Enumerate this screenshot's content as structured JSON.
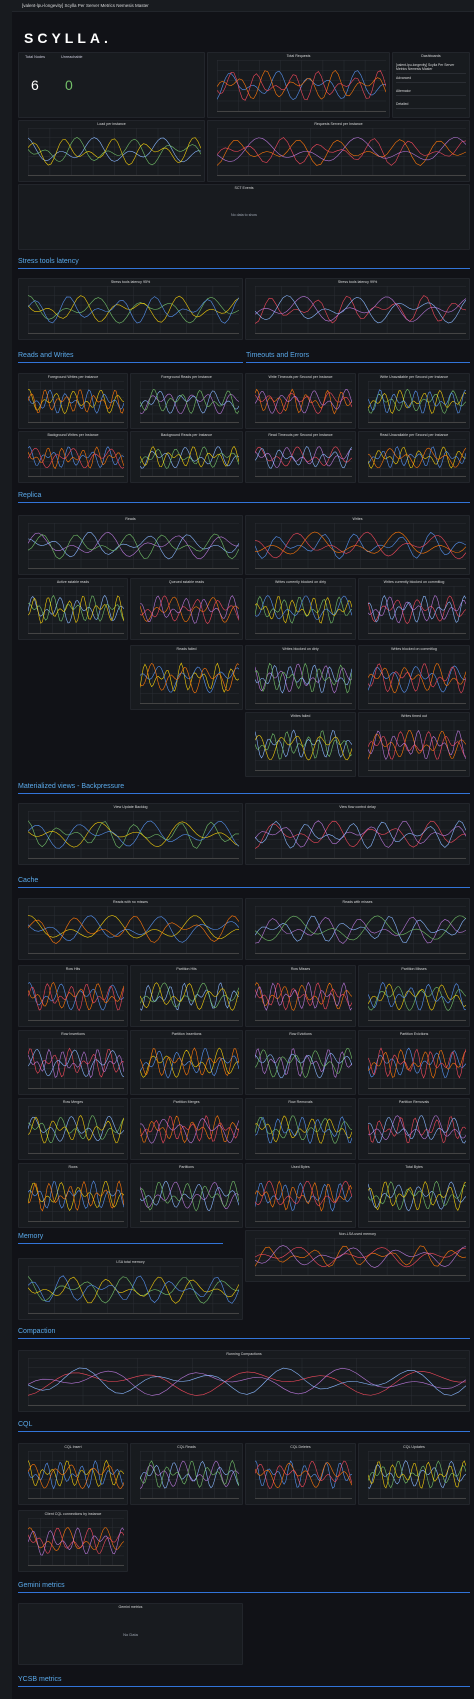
{
  "header": {
    "title": "[valent-lpu-longevity] Scylla Per Server Metrics Nemesis Master"
  },
  "logo": "SCYLLA.",
  "stats": {
    "total_nodes_label": "Total Nodes",
    "total_nodes": 6,
    "unreachable_label": "Unreachable",
    "unreachable": 0
  },
  "dashboards": {
    "title": "Dashboards",
    "items": [
      "[valent-lpu-longevity] Scylla Per Server Metrics Nemesis Master",
      "Advanced",
      "Alternator",
      "Detailed"
    ]
  },
  "top_panels": [
    "Total Requests",
    "Load per instance",
    "Requests Served per Instance",
    "SCT Events"
  ],
  "sct_no_data": "No data to show",
  "sections": [
    {
      "title": "Stress tools latency",
      "panels": [
        "Stress tools latency 95%",
        "Stress tools latency 99%"
      ]
    },
    {
      "title": "Reads and Writes",
      "panels": [
        "Foreground Writes per Instance",
        "Foreground Reads per Instance",
        "Background Writes per Instance",
        "Background Reads per Instance"
      ]
    },
    {
      "title": "Timeouts and Errors",
      "panels": [
        "Write Timeouts per Second per Instance",
        "Write Unavailable per Second per Instance",
        "Read Timeouts per Second per Instance",
        "Read Unavailable per Second per Instance"
      ]
    },
    {
      "title": "Replica",
      "panels": [
        "Reads",
        "Writes",
        "Active sstable reads",
        "Queued sstable reads",
        "Writes currently blocked on dirty",
        "Writes currently blocked on commitlog",
        "Reads failed",
        "Writes blocked on dirty",
        "Writes blocked on commitlog",
        "Writes failed",
        "Writes timed out"
      ]
    },
    {
      "title": "Materialized views - Backpressure",
      "panels": [
        "View Update Backlog",
        "View flow control delay"
      ]
    },
    {
      "title": "Cache",
      "panels": [
        "Reads with no misses",
        "Reads with misses",
        "Row Hits",
        "Partition Hits",
        "Row Misses",
        "Partition Misses",
        "Row Insertions",
        "Partition Insertions",
        "Row Evictions",
        "Partition Evictions",
        "Row Merges",
        "Partition Merges",
        "Row Removals",
        "Partition Removals",
        "Rows",
        "Partitions",
        "Used Bytes",
        "Total Bytes"
      ]
    },
    {
      "title": "Memory",
      "panels": [
        "Non-LSA used memory",
        "LSA total memory"
      ]
    },
    {
      "title": "Compaction",
      "panels": [
        "Running Compactions"
      ]
    },
    {
      "title": "CQL",
      "panels": [
        "CQL Insert",
        "CQL Reads",
        "CQL Deletes",
        "CQL Updates",
        "Client CQL connections by instance"
      ]
    },
    {
      "title": "Gemini metrics",
      "panels": [
        "Gemini metrics"
      ],
      "no_data": "No Data"
    },
    {
      "title": "YCSB metrics",
      "panels": []
    }
  ]
}
